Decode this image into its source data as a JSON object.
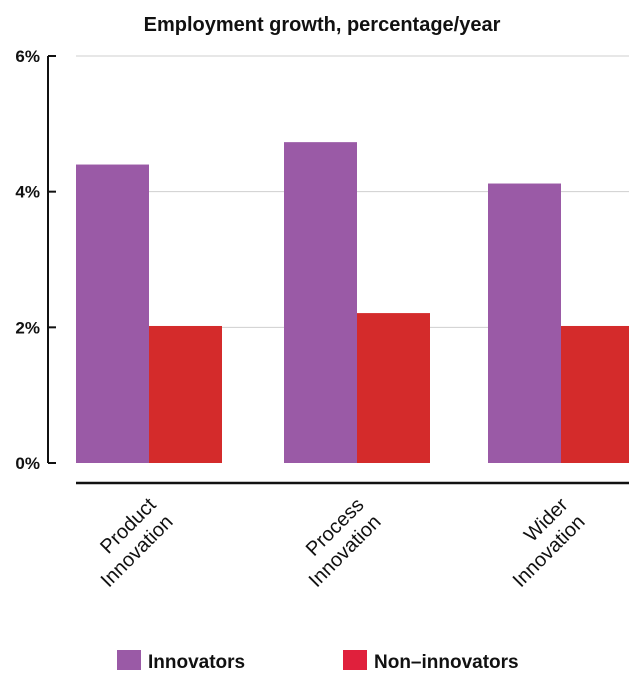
{
  "chart_data": {
    "type": "bar",
    "title": "Employment growth, percentage/year",
    "categories": [
      "Product Innovation",
      "Process Innovation",
      "Wider Innovation"
    ],
    "category_lines": [
      [
        "Product",
        "Innovation"
      ],
      [
        "Process",
        "Innovation"
      ],
      [
        "Wider",
        "Innovation"
      ]
    ],
    "series": [
      {
        "name": "Innovators",
        "color": "#9a5aa6",
        "values": [
          4.4,
          4.73,
          4.12
        ]
      },
      {
        "name": "Non-innovators",
        "color": "#d42b2b",
        "values": [
          2.02,
          2.21,
          2.02
        ]
      }
    ],
    "ylim": [
      0,
      6
    ],
    "yticks": [
      0,
      2,
      4,
      6
    ],
    "ytick_labels": [
      "0%",
      "2%",
      "4%",
      "6%"
    ],
    "xlabel": "",
    "ylabel": "",
    "grid": true,
    "legend": {
      "placement": "bottom",
      "items": [
        {
          "label": "Innovators",
          "color": "#9a5aa6"
        },
        {
          "label": "Non–innovators",
          "color": "#e0203c"
        }
      ]
    }
  }
}
